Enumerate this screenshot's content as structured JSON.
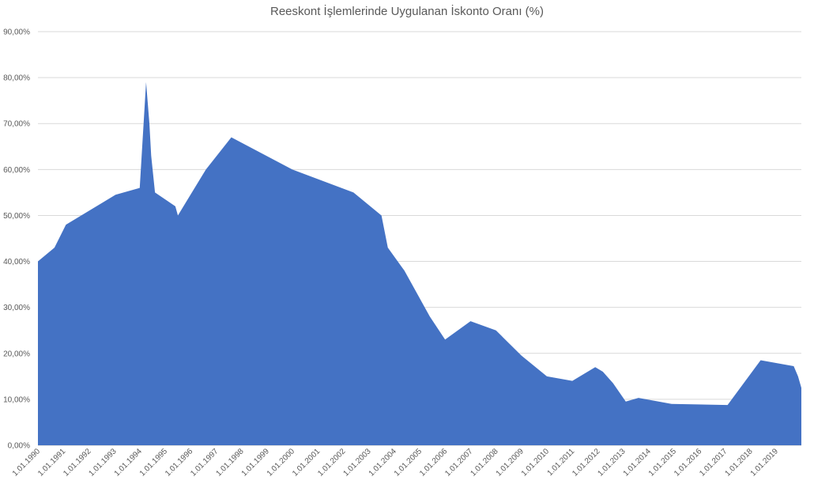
{
  "chart_data": {
    "type": "area",
    "title": "Reeskont İşlemlerinde Uygulanan İskonto Oranı (%)",
    "xlabel": "",
    "ylabel": "",
    "ylim": [
      0,
      90
    ],
    "y_ticks": [
      "0,00%",
      "10,00%",
      "20,00%",
      "30,00%",
      "40,00%",
      "50,00%",
      "60,00%",
      "70,00%",
      "80,00%",
      "90,00%"
    ],
    "x_range": [
      1990.0,
      2020.0
    ],
    "x_ticks": [
      {
        "x": 1990,
        "label": "1.01.1990"
      },
      {
        "x": 1991,
        "label": "1.01.1991"
      },
      {
        "x": 1992,
        "label": "1.01.1992"
      },
      {
        "x": 1993,
        "label": "1.01.1993"
      },
      {
        "x": 1994,
        "label": "1.01.1994"
      },
      {
        "x": 1995,
        "label": "1.01.1995"
      },
      {
        "x": 1996,
        "label": "1.01.1996"
      },
      {
        "x": 1997,
        "label": "1.01.1997"
      },
      {
        "x": 1998,
        "label": "1.01.1998"
      },
      {
        "x": 1999,
        "label": "1.01.1999"
      },
      {
        "x": 2000,
        "label": "1.01.2000"
      },
      {
        "x": 2001,
        "label": "1.01.2001"
      },
      {
        "x": 2002,
        "label": "1.01.2002"
      },
      {
        "x": 2003,
        "label": "1.01.2003"
      },
      {
        "x": 2004,
        "label": "1.01.2004"
      },
      {
        "x": 2005,
        "label": "1.01.2005"
      },
      {
        "x": 2006,
        "label": "1.01.2006"
      },
      {
        "x": 2007,
        "label": "1.01.2007"
      },
      {
        "x": 2008,
        "label": "1.01.2008"
      },
      {
        "x": 2009,
        "label": "1.01.2009"
      },
      {
        "x": 2010,
        "label": "1.01.2010"
      },
      {
        "x": 2011,
        "label": "1.01.2011"
      },
      {
        "x": 2012,
        "label": "1.01.2012"
      },
      {
        "x": 2013,
        "label": "1.01.2013"
      },
      {
        "x": 2014,
        "label": "1.01.2014"
      },
      {
        "x": 2015,
        "label": "1.01.2015"
      },
      {
        "x": 2016,
        "label": "1.01.2016"
      },
      {
        "x": 2017,
        "label": "1.01.2017"
      },
      {
        "x": 2018,
        "label": "1.01.2018"
      },
      {
        "x": 2019,
        "label": "1.01.2019"
      }
    ],
    "series": [
      {
        "color": "#4472c4",
        "points": [
          [
            1990.0,
            40.0
          ],
          [
            1990.65,
            43.0
          ],
          [
            1991.1,
            48.0
          ],
          [
            1993.05,
            54.5
          ],
          [
            1994.0,
            56.0
          ],
          [
            1994.25,
            79.0
          ],
          [
            1994.38,
            70.0
          ],
          [
            1994.45,
            63.0
          ],
          [
            1994.6,
            55.0
          ],
          [
            1995.4,
            52.0
          ],
          [
            1995.5,
            50.0
          ],
          [
            1996.6,
            60.0
          ],
          [
            1997.6,
            67.0
          ],
          [
            2000.0,
            60.0
          ],
          [
            2002.4,
            55.0
          ],
          [
            2003.5,
            50.0
          ],
          [
            2003.75,
            43.0
          ],
          [
            2004.4,
            38.0
          ],
          [
            2005.0,
            32.0
          ],
          [
            2005.4,
            28.0
          ],
          [
            2006.0,
            23.0
          ],
          [
            2007.0,
            27.0
          ],
          [
            2008.0,
            25.0
          ],
          [
            2009.0,
            19.5
          ],
          [
            2010.0,
            15.0
          ],
          [
            2011.0,
            14.0
          ],
          [
            2011.9,
            17.0
          ],
          [
            2012.2,
            16.0
          ],
          [
            2012.6,
            13.5
          ],
          [
            2013.1,
            9.5
          ],
          [
            2013.6,
            10.3
          ],
          [
            2014.9,
            9.0
          ],
          [
            2017.1,
            8.75
          ],
          [
            2018.4,
            18.5
          ],
          [
            2019.7,
            17.2
          ],
          [
            2019.87,
            15.0
          ],
          [
            2020.0,
            12.5
          ]
        ]
      }
    ],
    "grid": true,
    "legend": "none"
  }
}
